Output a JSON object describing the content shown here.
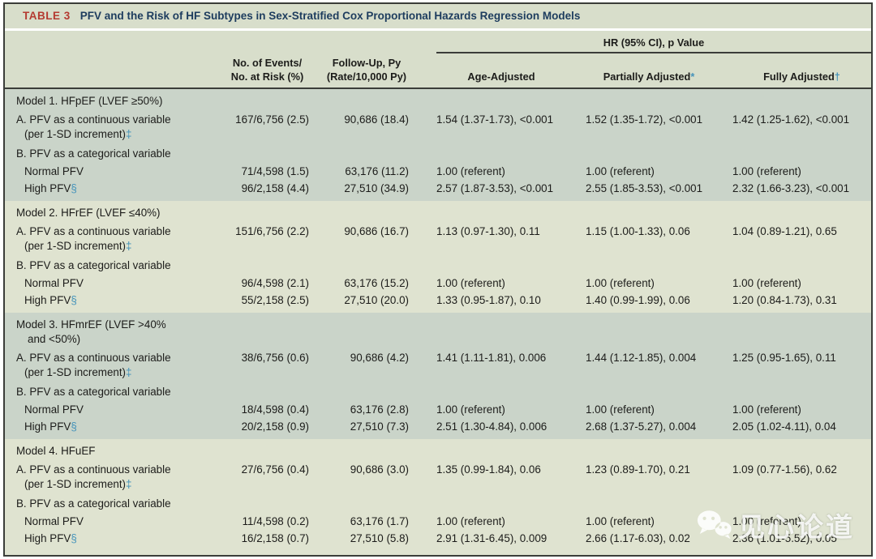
{
  "colors": {
    "band_light": "#d8decb",
    "block_dark": "#cad4c9",
    "block_light": "#dfe3d0",
    "frame_border": "#3b3d39",
    "title_label_red": "#b43a31",
    "title_text_navy": "#1d3c5e",
    "body_text": "#1c1c1a",
    "footnote_marker_teal": "#4593ba",
    "watermark_white": "rgba(255,255,255,0.86)"
  },
  "table": {
    "label": "TABLE 3",
    "title": "PFV and the Risk of HF Subtypes in Sex-Stratified Cox Proportional Hazards Regression Models"
  },
  "columns": {
    "events_line1": "No. of Events/",
    "events_line2": "No. at Risk (%)",
    "followup_line1": "Follow-Up, Py",
    "followup_line2": "(Rate/10,000 Py)",
    "hr_group": "HR (95% CI), p Value",
    "adjusted": [
      {
        "label": "Age-Adjusted",
        "marker": ""
      },
      {
        "label": "Partially Adjusted",
        "marker": "*"
      },
      {
        "label": "Fully Adjusted",
        "marker": "†"
      }
    ]
  },
  "models": [
    {
      "shade": "dark",
      "title_lines": [
        "Model 1. HFpEF (LVEF ≥50%)"
      ],
      "continuous": {
        "label": "A. PFV as a continuous variable",
        "sub_label": "(per 1-SD increment)",
        "marker": "‡",
        "events": "167/6,756 (2.5)",
        "followup": "90,686 (18.4)",
        "age": "1.54 (1.37-1.73), <0.001",
        "partial": "1.52 (1.35-1.72), <0.001",
        "full": "1.42 (1.25-1.62), <0.001"
      },
      "categorical_label": "B. PFV as a categorical variable",
      "normal": {
        "label": "Normal PFV",
        "events": "71/4,598 (1.5)",
        "followup": "63,176 (11.2)",
        "age": "1.00 (referent)",
        "partial": "1.00 (referent)",
        "full": "1.00 (referent)"
      },
      "high": {
        "label": "High PFV",
        "marker": "§",
        "events": "96/2,158 (4.4)",
        "followup": "27,510 (34.9)",
        "age": "2.57 (1.87-3.53), <0.001",
        "partial": "2.55 (1.85-3.53), <0.001",
        "full": "2.32 (1.66-3.23), <0.001"
      }
    },
    {
      "shade": "light",
      "title_lines": [
        "Model 2. HFrEF (LVEF ≤40%)"
      ],
      "continuous": {
        "label": "A. PFV as a continuous variable",
        "sub_label": "(per 1-SD increment)",
        "marker": "‡",
        "events": "151/6,756 (2.2)",
        "followup": "90,686 (16.7)",
        "age": "1.13 (0.97-1.30), 0.11",
        "partial": "1.15 (1.00-1.33), 0.06",
        "full": "1.04 (0.89-1.21), 0.65"
      },
      "categorical_label": "B. PFV as a categorical variable",
      "normal": {
        "label": "Normal PFV",
        "events": "96/4,598 (2.1)",
        "followup": "63,176 (15.2)",
        "age": "1.00 (referent)",
        "partial": "1.00 (referent)",
        "full": "1.00 (referent)"
      },
      "high": {
        "label": "High PFV",
        "marker": "§",
        "events": "55/2,158 (2.5)",
        "followup": "27,510 (20.0)",
        "age": "1.33 (0.95-1.87), 0.10",
        "partial": "1.40 (0.99-1.99), 0.06",
        "full": "1.20 (0.84-1.73), 0.31"
      }
    },
    {
      "shade": "dark",
      "title_lines": [
        "Model 3. HFmrEF (LVEF >40%",
        "and <50%)"
      ],
      "continuous": {
        "label": "A. PFV as a continuous variable",
        "sub_label": "(per 1-SD increment)",
        "marker": "‡",
        "events": "38/6,756 (0.6)",
        "followup": "90,686 (4.2)",
        "age": "1.41 (1.11-1.81), 0.006",
        "partial": "1.44 (1.12-1.85), 0.004",
        "full": "1.25 (0.95-1.65), 0.11"
      },
      "categorical_label": "B. PFV as a categorical variable",
      "normal": {
        "label": "Normal PFV",
        "events": "18/4,598 (0.4)",
        "followup": "63,176 (2.8)",
        "age": "1.00 (referent)",
        "partial": "1.00 (referent)",
        "full": "1.00 (referent)"
      },
      "high": {
        "label": "High PFV",
        "marker": "§",
        "events": "20/2,158 (0.9)",
        "followup": "27,510 (7.3)",
        "age": "2.51 (1.30-4.84), 0.006",
        "partial": "2.68 (1.37-5.27), 0.004",
        "full": "2.05 (1.02-4.11), 0.04"
      }
    },
    {
      "shade": "light",
      "title_lines": [
        "Model 4. HFuEF"
      ],
      "continuous": {
        "label": "A. PFV as a continuous variable",
        "sub_label": "(per 1-SD increment)",
        "marker": "‡",
        "events": "27/6,756 (0.4)",
        "followup": "90,686 (3.0)",
        "age": "1.35 (0.99-1.84), 0.06",
        "partial": "1.23 (0.89-1.70), 0.21",
        "full": "1.09 (0.77-1.56), 0.62"
      },
      "categorical_label": "B. PFV as a categorical variable",
      "normal": {
        "label": "Normal PFV",
        "events": "11/4,598 (0.2)",
        "followup": "63,176 (1.7)",
        "age": "1.00 (referent)",
        "partial": "1.00 (referent)",
        "full": "1.00 (referent)"
      },
      "high": {
        "label": "High PFV",
        "marker": "§",
        "events": "16/2,158 (0.7)",
        "followup": "27,510 (5.8)",
        "age": "2.91 (1.31-6.45), 0.009",
        "partial": "2.66 (1.17-6.03), 0.02",
        "full": "2.36 (1.01-5.52), 0.05"
      }
    }
  ],
  "watermark": {
    "text": "见心论道"
  }
}
